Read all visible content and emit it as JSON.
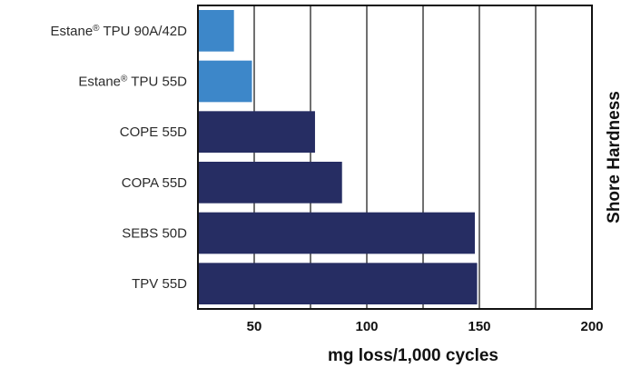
{
  "chart_data": {
    "type": "bar",
    "orientation": "horizontal",
    "categories": [
      {
        "name": "Estane",
        "sup": "®",
        "rest": " TPU 90A/42D"
      },
      {
        "name": "Estane",
        "sup": "®",
        "rest": " TPU 55D"
      },
      {
        "name": "COPE 55D",
        "sup": "",
        "rest": ""
      },
      {
        "name": "COPA 55D",
        "sup": "",
        "rest": ""
      },
      {
        "name": "SEBS 50D",
        "sup": "",
        "rest": ""
      },
      {
        "name": "TPV 55D",
        "sup": "",
        "rest": ""
      }
    ],
    "values": [
      41,
      49,
      77,
      89,
      148,
      149
    ],
    "bar_colors": [
      "#3d87c9",
      "#3d87c9",
      "#262d63",
      "#262d63",
      "#262d63",
      "#262d63"
    ],
    "xlim": [
      25,
      200
    ],
    "xticks": [
      50,
      100,
      150,
      200
    ],
    "gridlines": [
      50,
      75,
      100,
      125,
      150,
      175,
      200
    ],
    "xlabel": "mg loss/1,000 cycles",
    "ylabel": "Shore Hardness",
    "grid": true
  }
}
